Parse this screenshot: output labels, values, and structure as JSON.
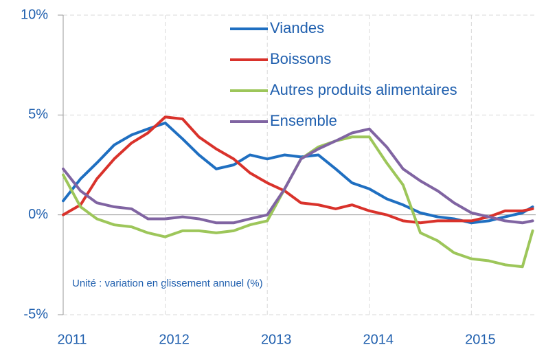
{
  "chart_data": {
    "type": "line",
    "annotation": "Unité : variation en glissement annuel (%)",
    "x": [
      2011,
      2011.17,
      2011.33,
      2011.5,
      2011.67,
      2011.83,
      2012,
      2012.17,
      2012.33,
      2012.5,
      2012.67,
      2012.83,
      2013,
      2013.17,
      2013.33,
      2013.5,
      2013.67,
      2013.83,
      2014,
      2014.17,
      2014.33,
      2014.5,
      2014.67,
      2014.83,
      2015,
      2015.17,
      2015.33,
      2015.5,
      2015.6
    ],
    "series": [
      {
        "name": "Viandes",
        "color": "#1f6fc1",
        "values": [
          0.7,
          1.8,
          2.6,
          3.5,
          4.0,
          4.3,
          4.6,
          3.8,
          3.0,
          2.3,
          2.5,
          3.0,
          2.8,
          3.0,
          2.9,
          3.0,
          2.3,
          1.6,
          1.3,
          0.8,
          0.5,
          0.1,
          -0.1,
          -0.2,
          -0.4,
          -0.3,
          -0.1,
          0.1,
          0.4
        ]
      },
      {
        "name": "Boissons",
        "color": "#d9322b",
        "values": [
          0.0,
          0.5,
          1.8,
          2.8,
          3.6,
          4.1,
          4.9,
          4.8,
          3.9,
          3.3,
          2.8,
          2.1,
          1.6,
          1.2,
          0.6,
          0.5,
          0.3,
          0.5,
          0.2,
          0.0,
          -0.3,
          -0.4,
          -0.3,
          -0.3,
          -0.3,
          -0.1,
          0.2,
          0.2,
          0.3
        ]
      },
      {
        "name": "Autres produits alimentaires",
        "color": "#9dc65a",
        "values": [
          2.0,
          0.4,
          -0.2,
          -0.5,
          -0.6,
          -0.9,
          -1.1,
          -0.8,
          -0.8,
          -0.9,
          -0.8,
          -0.5,
          -0.3,
          1.3,
          2.8,
          3.4,
          3.7,
          3.9,
          3.9,
          2.6,
          1.5,
          -0.9,
          -1.3,
          -1.9,
          -2.2,
          -2.3,
          -2.5,
          -2.6,
          -0.8
        ]
      },
      {
        "name": "Ensemble",
        "color": "#8064a2",
        "values": [
          2.3,
          1.2,
          0.6,
          0.4,
          0.3,
          -0.2,
          -0.2,
          -0.1,
          -0.2,
          -0.4,
          -0.4,
          -0.2,
          0.0,
          1.3,
          2.8,
          3.3,
          3.7,
          4.1,
          4.3,
          3.4,
          2.3,
          1.7,
          1.2,
          0.6,
          0.1,
          -0.1,
          -0.3,
          -0.4,
          -0.3
        ]
      }
    ],
    "xlim": [
      2011,
      2015.63
    ],
    "xticks": [
      2011,
      2012,
      2013,
      2014,
      2015
    ],
    "ylim": [
      -5,
      10
    ],
    "yticks": [
      {
        "value": -5,
        "label": "-5%"
      },
      {
        "value": 0,
        "label": "0%"
      },
      {
        "value": 5,
        "label": "5%"
      },
      {
        "value": 10,
        "label": "10%"
      }
    ],
    "grid": true
  }
}
